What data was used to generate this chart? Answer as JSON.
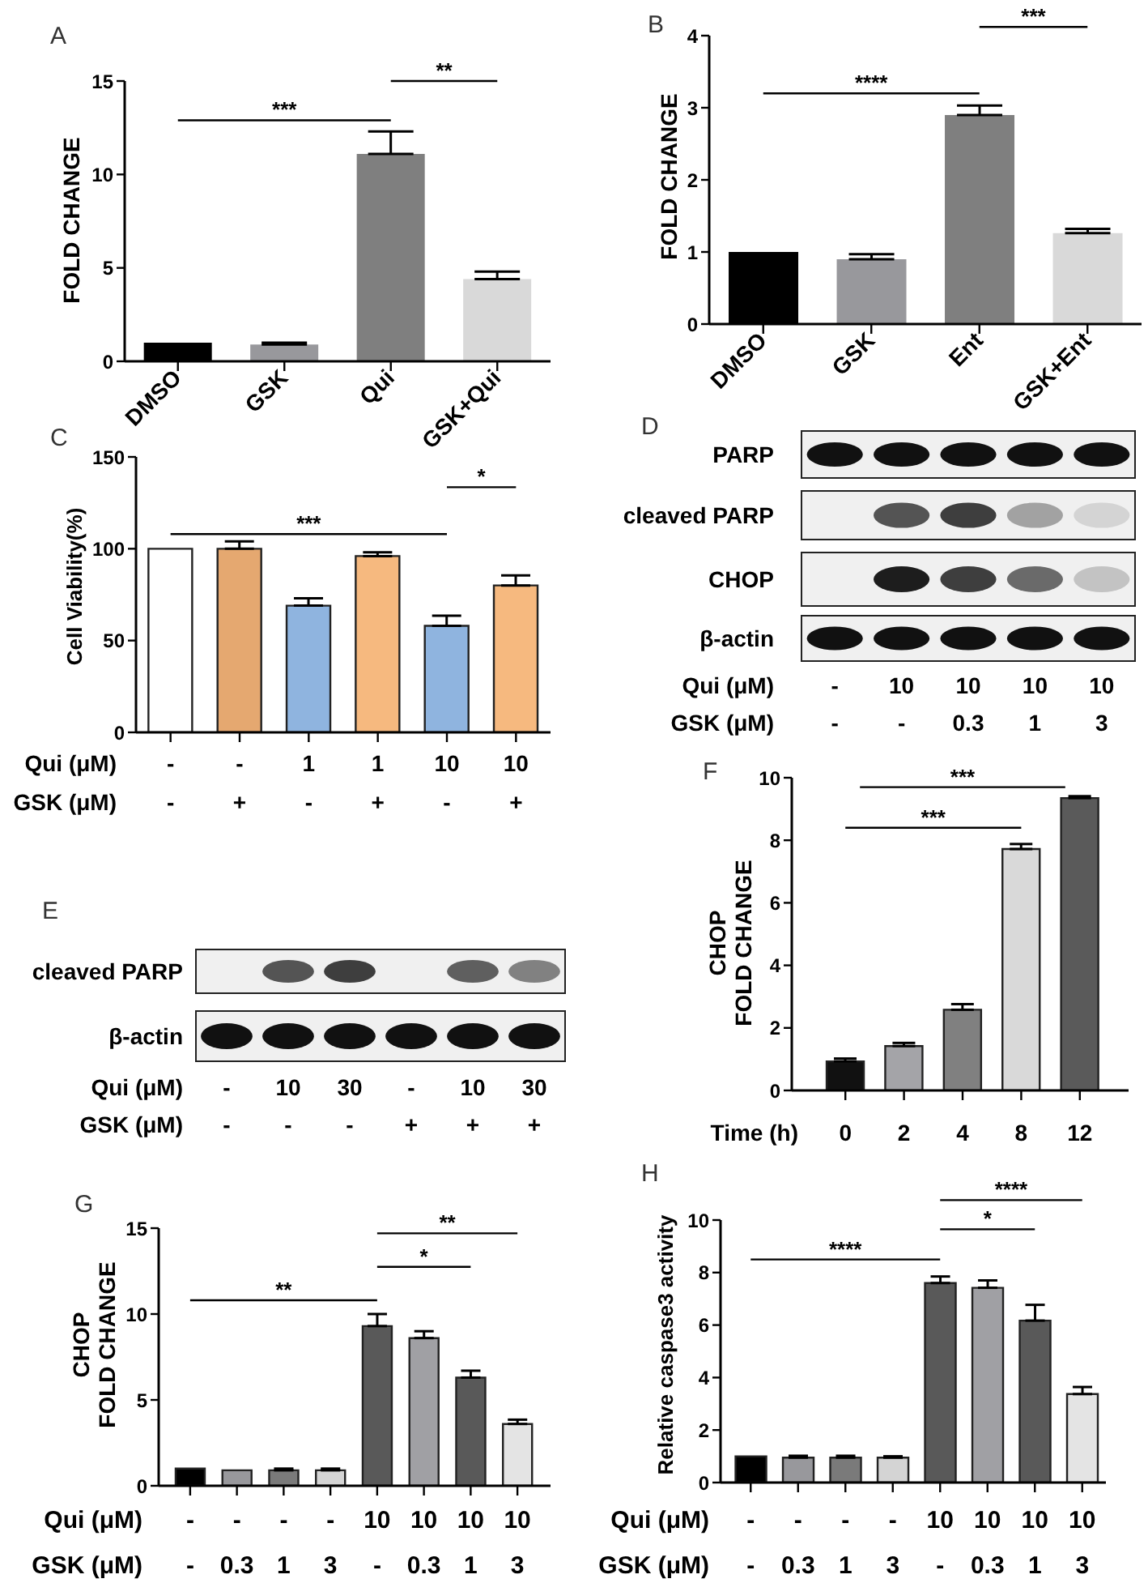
{
  "chart_data": [
    {
      "type": "bar",
      "title": "A",
      "ylabel": "FOLD CHANGE",
      "categories": [
        "DMSO",
        "GSK",
        "Qui",
        "GSK+Qui"
      ],
      "values": [
        1.0,
        0.9,
        11.1,
        4.4
      ],
      "errors": [
        null,
        [
          0.9,
          1.0
        ],
        [
          11.1,
          12.3
        ],
        [
          4.4,
          4.8
        ]
      ],
      "colors": [
        "#000000",
        "#98989c",
        "#7f7f7f",
        "#d9d9d9"
      ],
      "ylim": [
        0,
        15
      ],
      "yticks": [
        0,
        5,
        10,
        15
      ],
      "annotations": [
        "***",
        "**"
      ]
    },
    {
      "type": "bar",
      "title": "B",
      "ylabel": "FOLD CHANGE",
      "categories": [
        "DMSO",
        "GSK",
        "Ent",
        "GSK+Ent"
      ],
      "values": [
        1.0,
        0.9,
        2.9,
        1.26
      ],
      "errors": [
        null,
        [
          0.9,
          0.97
        ],
        [
          2.9,
          3.03
        ],
        [
          1.26,
          1.32
        ]
      ],
      "colors": [
        "#000000",
        "#98989c",
        "#7f7f7f",
        "#d9d9d9"
      ],
      "ylim": [
        0,
        4
      ],
      "yticks": [
        0,
        1,
        2,
        3,
        4
      ],
      "annotations": [
        "****",
        "***"
      ]
    },
    {
      "type": "bar",
      "title": "C",
      "ylabel": "Cell Viability(%)",
      "categories": [
        "-\n-",
        "-\n+",
        "1\n-",
        "1\n+",
        "10\n-",
        "10\n+"
      ],
      "values": [
        100,
        100,
        69,
        96,
        58,
        80
      ],
      "errors": [
        null,
        [
          100,
          104
        ],
        [
          69,
          73
        ],
        [
          96,
          98
        ],
        [
          58,
          63.5
        ],
        [
          80,
          85.5
        ]
      ],
      "colors": [
        "#ffffff",
        "#e5a870",
        "#8fb4df",
        "#f6b97f",
        "#8fb4df",
        "#f6b97f"
      ],
      "ylim": [
        0,
        150
      ],
      "yticks": [
        0,
        50,
        100,
        150
      ],
      "annotations": [
        "Qui (μM)",
        "GSK (μM)",
        "***",
        "*"
      ]
    },
    {
      "type": "other",
      "title": "D",
      "categories": [
        "-\n-",
        "10\n-",
        "10\n0.3",
        "10\n1",
        "10\n3"
      ],
      "annotations": [
        "Qui (μM)",
        "GSK (μM)",
        "PARP",
        "cleaved PARP",
        "CHOP",
        "β-actin"
      ]
    },
    {
      "type": "other",
      "title": "E",
      "categories": [
        "-\n-",
        "10\n-",
        "30\n-",
        "-\n+",
        "10\n+",
        "30\n+"
      ],
      "annotations": [
        "Qui (μM)",
        "GSK (μM)",
        "cleaved PARP",
        "β-actin"
      ]
    },
    {
      "type": "bar",
      "title": "F",
      "xlabel": "Time (h)",
      "ylabel": "CHOP\nFOLD CHANGE",
      "categories": [
        "0",
        "2",
        "4",
        "8",
        "12"
      ],
      "values": [
        0.93,
        1.42,
        2.58,
        7.72,
        9.35
      ],
      "errors": [
        [
          0.93,
          1.02
        ],
        [
          1.42,
          1.52
        ],
        [
          2.58,
          2.76
        ],
        [
          7.72,
          7.88
        ],
        [
          9.35,
          9.41
        ]
      ],
      "colors": [
        "#111111",
        "#a4a4a8",
        "#808080",
        "#d9d9d9",
        "#5a5a5a"
      ],
      "ylim": [
        0,
        10
      ],
      "yticks": [
        0,
        2,
        4,
        6,
        8,
        10
      ],
      "annotations": [
        "***",
        "***"
      ]
    },
    {
      "type": "bar",
      "title": "G",
      "ylabel": "CHOP\nFOLD CHANGE",
      "categories": [
        "-\n-",
        "-\n0.3",
        "-\n1",
        "-\n3",
        "10\n-",
        "10\n0.3",
        "10\n1",
        "10\n3"
      ],
      "values": [
        1.0,
        0.9,
        0.9,
        0.9,
        9.3,
        8.6,
        6.3,
        3.6
      ],
      "errors": [
        null,
        null,
        [
          0.9,
          1.0
        ],
        [
          0.9,
          1.0
        ],
        [
          9.3,
          10.0
        ],
        [
          8.6,
          9.0
        ],
        [
          6.3,
          6.7
        ],
        [
          3.6,
          3.85
        ]
      ],
      "colors": [
        "#000000",
        "#98989c",
        "#7a7a7a",
        "#d4d4d4",
        "#595959",
        "#a0a0a4",
        "#595959",
        "#e4e4e4"
      ],
      "ylim": [
        0,
        15
      ],
      "yticks": [
        0,
        5,
        10,
        15
      ],
      "annotations": [
        "Qui (μM)",
        "GSK (μM)",
        "**",
        "*",
        "**"
      ]
    },
    {
      "type": "bar",
      "title": "H",
      "ylabel": "Relative caspase3 activity",
      "categories": [
        "-\n-",
        "-\n0.3",
        "-\n1",
        "-\n3",
        "10\n-",
        "10\n0.3",
        "10\n1",
        "10\n3"
      ],
      "values": [
        1.0,
        0.95,
        0.95,
        0.95,
        7.6,
        7.42,
        6.17,
        3.37
      ],
      "errors": [
        null,
        [
          0.95,
          1.02
        ],
        [
          0.95,
          1.02
        ],
        [
          0.95,
          1.0
        ],
        [
          7.6,
          7.85
        ],
        [
          7.42,
          7.7
        ],
        [
          6.17,
          6.77
        ],
        [
          3.37,
          3.64
        ]
      ],
      "colors": [
        "#000000",
        "#98989c",
        "#7a7a7a",
        "#d4d4d4",
        "#595959",
        "#a0a0a4",
        "#595959",
        "#e4e4e4"
      ],
      "ylim": [
        0,
        10
      ],
      "yticks": [
        0,
        2,
        4,
        6,
        8,
        10
      ],
      "annotations": [
        "Qui (μM)",
        "GSK (μM)",
        "****",
        "*",
        "****"
      ]
    }
  ]
}
